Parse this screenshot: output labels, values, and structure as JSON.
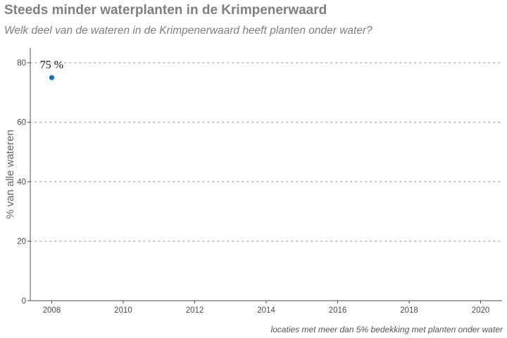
{
  "title": "Steeds minder waterplanten in de Krimpenerwaard",
  "subtitle": "Welk deel van de wateren in de Krimpenerwaard heeft planten onder water?",
  "caption": "locaties met meer dan 5% bedekking met planten onder water",
  "colors": {
    "point": "#0b72b5",
    "title": "#7f7f7f",
    "grid": "#b3b3b3",
    "axis": "#4d4d4d"
  },
  "chart_data": {
    "type": "scatter",
    "xlabel": "",
    "ylabel": "% van alle wateren",
    "xlim": [
      2007.4,
      2020.6
    ],
    "ylim": [
      0,
      85
    ],
    "x_ticks": [
      "2008",
      "2010",
      "2012",
      "2014",
      "2016",
      "2018",
      "2020"
    ],
    "y_ticks": [
      "0",
      "20",
      "40",
      "60",
      "80"
    ],
    "grid": "horizontal dotted",
    "points": [
      {
        "x": 2008,
        "y": 75,
        "label": "75 %"
      }
    ]
  }
}
